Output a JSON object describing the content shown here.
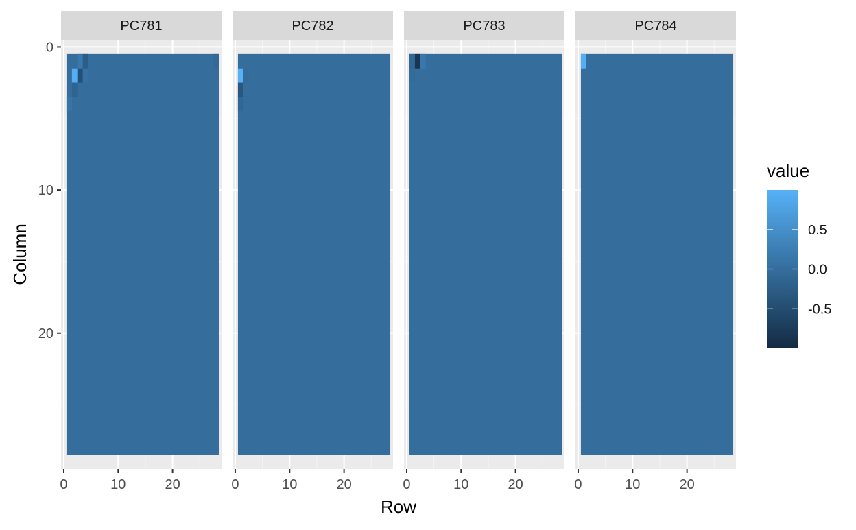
{
  "chart_data": {
    "type": "heatmap",
    "xlabel": "Row",
    "ylabel": "Column",
    "x_ticks": [
      0,
      10,
      20
    ],
    "y_ticks": [
      0,
      10,
      20
    ],
    "xlim": [
      -0.5,
      29
    ],
    "ylim": [
      -0.5,
      29.5
    ],
    "y_reversed": true,
    "grid": true,
    "grid_size": {
      "rows": 28,
      "cols": 28
    },
    "baseline_value": 0.0,
    "legend": {
      "title": "value",
      "position": "right",
      "ticks": [
        0.5,
        0.0,
        -0.5
      ],
      "tick_labels": [
        "0.5",
        "0.0",
        "-0.5"
      ],
      "range": [
        -1.0,
        1.0
      ],
      "low_color": "#132b43",
      "high_color": "#56b1f7"
    },
    "panels": [
      {
        "title": "PC781",
        "cells": [
          {
            "x": 3,
            "y": 1,
            "value": 0.15
          },
          {
            "x": 4,
            "y": 1,
            "value": -0.25
          },
          {
            "x": 2,
            "y": 2,
            "value": 0.95
          },
          {
            "x": 3,
            "y": 2,
            "value": -0.45
          },
          {
            "x": 4,
            "y": 2,
            "value": 0.05
          },
          {
            "x": 2,
            "y": 3,
            "value": -0.15
          },
          {
            "x": 1,
            "y": 4,
            "value": 0.1
          },
          {
            "x": 28,
            "y": 1,
            "value": -0.08
          }
        ]
      },
      {
        "title": "PC782",
        "cells": [
          {
            "x": 1,
            "y": 2,
            "value": 1.0
          },
          {
            "x": 1,
            "y": 3,
            "value": -0.35
          },
          {
            "x": 2,
            "y": 2,
            "value": -0.05
          },
          {
            "x": 1,
            "y": 4,
            "value": -0.1
          }
        ]
      },
      {
        "title": "PC783",
        "cells": [
          {
            "x": 2,
            "y": 1,
            "value": -0.85
          },
          {
            "x": 3,
            "y": 1,
            "value": 0.15
          },
          {
            "x": 1,
            "y": 1,
            "value": -0.1
          },
          {
            "x": 1,
            "y": 2,
            "value": -0.05
          }
        ]
      },
      {
        "title": "PC784",
        "cells": [
          {
            "x": 1,
            "y": 1,
            "value": 0.95
          }
        ]
      }
    ]
  }
}
